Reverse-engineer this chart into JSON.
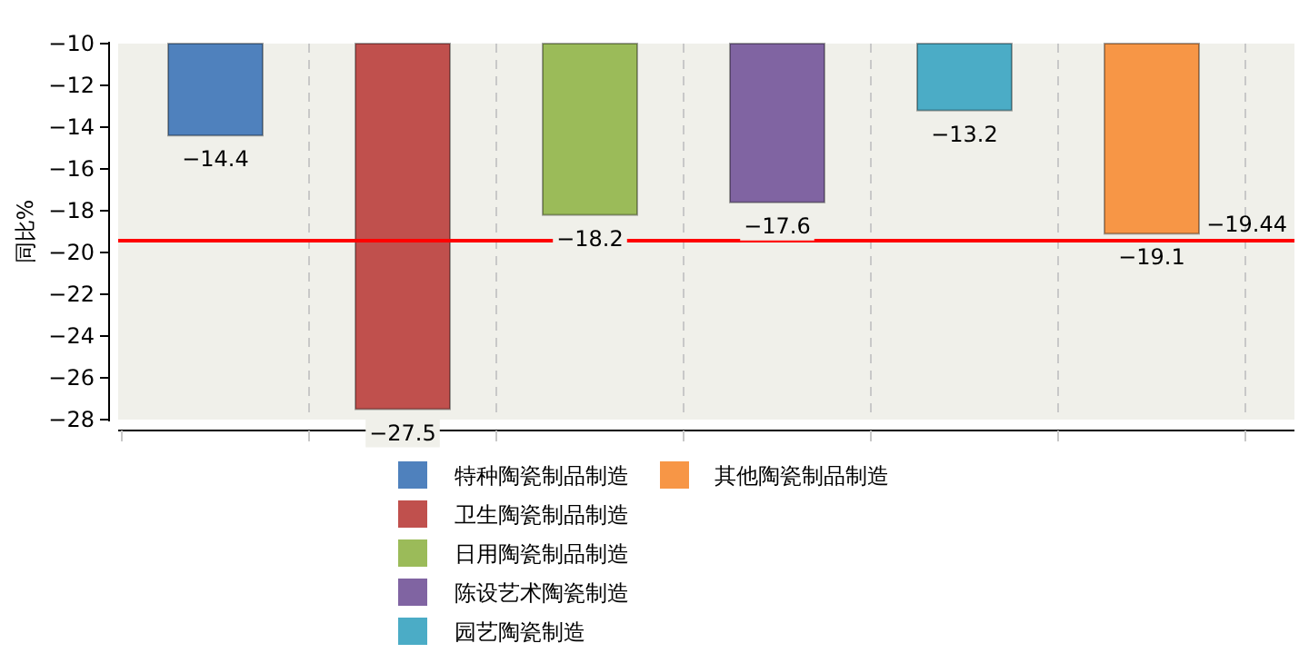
{
  "chart_data": {
    "type": "bar",
    "ylabel": "同比%",
    "categories": [
      null,
      null,
      null,
      null,
      null,
      null
    ],
    "series": [
      {
        "name": "特种陶瓷制品制造",
        "color": "#4f81bd",
        "values": [
          -14.4,
          null,
          null,
          null,
          null,
          null
        ]
      },
      {
        "name": "卫生陶瓷制品制造",
        "color": "#c0504d",
        "values": [
          null,
          -27.5,
          null,
          null,
          null,
          null
        ]
      },
      {
        "name": "日用陶瓷制品制造",
        "color": "#9bbb59",
        "values": [
          null,
          null,
          -18.2,
          null,
          null,
          null
        ]
      },
      {
        "name": "陈设艺术陶瓷制造",
        "color": "#8064a2",
        "values": [
          null,
          null,
          null,
          -17.6,
          null,
          null
        ]
      },
      {
        "name": "园艺陶瓷制造",
        "color": "#4bacc6",
        "values": [
          null,
          null,
          null,
          null,
          -13.2,
          null
        ]
      },
      {
        "name": "其他陶瓷制品制造",
        "color": "#f79646",
        "values": [
          null,
          null,
          null,
          null,
          null,
          -19.1
        ]
      }
    ],
    "ylim": [
      -28,
      -10
    ],
    "yticks": [
      -28,
      -26,
      -24,
      -22,
      -20,
      -18,
      -16,
      -14,
      -12,
      -10
    ],
    "ref_lines": [
      {
        "axis": "y",
        "value": -19.44,
        "label": "−19.44",
        "color": "#ff0000"
      }
    ],
    "data_labels": true,
    "grid": "x",
    "legend": "bottom"
  }
}
